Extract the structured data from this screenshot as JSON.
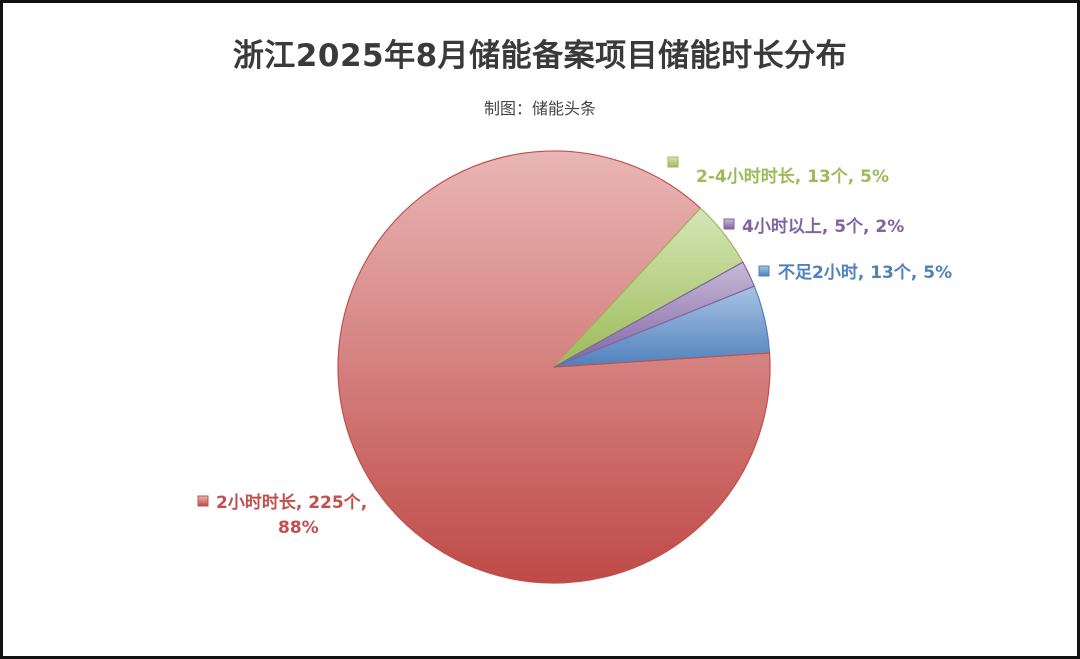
{
  "chart_title": "浙江2025年8月储能备案项目储能时长分布",
  "subtitle": "制图：储能头条",
  "chart_data": {
    "type": "pie",
    "title": "浙江2025年8月储能备案项目储能时长分布",
    "unit": "个",
    "series": [
      {
        "name": "不足2小时",
        "value": 13,
        "percent": "5%",
        "color": "#4f81bd",
        "label": "不足2小时, 13个, 5%"
      },
      {
        "name": "2小时时长",
        "value": 225,
        "percent": "88%",
        "color": "#c0504d",
        "label_line1": "2小时时长, 225个,",
        "label_line2": "88%"
      },
      {
        "name": "2-4小时时长",
        "value": 13,
        "percent": "5%",
        "color": "#9bbb59",
        "label": "2-4小时时长, 13个, 5%"
      },
      {
        "name": "4小时以上",
        "value": 5,
        "percent": "2%",
        "color": "#8064a2",
        "label": "4小时以上, 5个, 2%"
      }
    ]
  }
}
